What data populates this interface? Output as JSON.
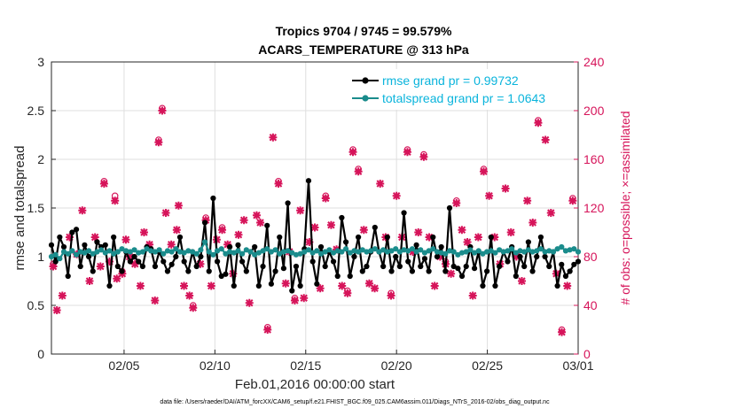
{
  "chart_data": {
    "type": "line",
    "title": "Tropics 9704 / 9745 = 99.579%",
    "subtitle": "ACARS_TEMPERATURE @ 313 hPa",
    "xlabel": "Feb.01,2016 00:00:00 start",
    "ylabel": "rmse and totalspread",
    "ylabel_right": "# of obs: o=possible; ×=assimilated",
    "footer": "data file: /Users/raeder/DAI/ATM_forcXX/CAM6_setup/f.e21.FHIST_BGC.f09_025.CAM6assim.011/Diags_NTrS_2016-02/obs_diag_output.nc",
    "x_range": [
      1,
      30
    ],
    "ylim": [
      0,
      3
    ],
    "ylim_right": [
      0,
      240
    ],
    "x_ticks": [
      5,
      10,
      15,
      20,
      25,
      30
    ],
    "x_tick_labels": [
      "02/05",
      "02/10",
      "02/15",
      "02/20",
      "02/25",
      "03/01"
    ],
    "y_ticks": [
      "0",
      "0.5",
      "1",
      "1.5",
      "2",
      "2.5",
      "3"
    ],
    "y_ticks_right": [
      "0",
      "40",
      "80",
      "120",
      "160",
      "200",
      "240"
    ],
    "legend": [
      {
        "label": "rmse grand pr = 0.99732",
        "color": "#000000"
      },
      {
        "label": "totalspread grand pr = 1.0643",
        "color": "#1a8c8c"
      }
    ],
    "series": [
      {
        "name": "rmse",
        "color": "#000000",
        "values": [
          1.12,
          0.95,
          1.2,
          1.1,
          0.8,
          1.25,
          1.28,
          0.9,
          1.12,
          1.0,
          0.85,
          1.15,
          1.1,
          1.12,
          0.7,
          1.2,
          0.9,
          0.85,
          1.05,
          0.95,
          1.0,
          0.95,
          0.9,
          1.1,
          1.08,
          0.9,
          1.05,
          0.95,
          0.85,
          0.92,
          1.0,
          1.2,
          0.95,
          0.85,
          1.05,
          0.9,
          1.0,
          1.35,
          0.85,
          1.6,
          0.95,
          0.8,
          0.82,
          1.1,
          0.7,
          1.12,
          0.95,
          0.85,
          1.05,
          1.1,
          0.7,
          0.9,
          1.32,
          0.72,
          0.85,
          1.2,
          0.88,
          1.55,
          0.65,
          0.9,
          0.7,
          1.08,
          1.78,
          0.95,
          0.72,
          1.1,
          0.9,
          1.05,
          0.95,
          0.8,
          1.4,
          1.15,
          0.8,
          1.0,
          1.2,
          0.85,
          0.9,
          1.05,
          1.3,
          1.05,
          0.9,
          1.2,
          0.85,
          1.0,
          0.9,
          1.45,
          0.95,
          0.85,
          1.12,
          0.9,
          0.98,
          0.85,
          1.2,
          1.0,
          1.1,
          0.85,
          1.5,
          0.9,
          0.88,
          0.8,
          0.9,
          1.1,
          0.88,
          1.05,
          0.7,
          0.85,
          1.2,
          0.7,
          0.9,
          1.05,
          0.95,
          1.1,
          0.8,
          1.0,
          0.9,
          1.15,
          0.85,
          1.0,
          1.2,
          1.0,
          0.9,
          1.05,
          0.7,
          0.92,
          0.8,
          0.85,
          0.92,
          0.95
        ]
      },
      {
        "name": "totalspread",
        "color": "#1a8c8c",
        "values": [
          1.0,
          1.02,
          0.98,
          1.05,
          1.03,
          1.06,
          1.02,
          1.05,
          1.04,
          1.06,
          1.03,
          1.05,
          1.07,
          1.04,
          1.06,
          1.03,
          1.05,
          1.08,
          1.06,
          1.05,
          1.07,
          1.04,
          1.05,
          1.08,
          1.06,
          1.05,
          1.07,
          1.03,
          1.06,
          1.05,
          1.08,
          1.05,
          1.04,
          1.06,
          1.05,
          1.03,
          1.07,
          1.15,
          1.05,
          1.02,
          1.06,
          1.08,
          1.03,
          1.05,
          1.04,
          1.06,
          1.03,
          1.07,
          1.05,
          1.02,
          1.04,
          1.06,
          1.08,
          1.05,
          1.07,
          1.03,
          1.05,
          1.06,
          1.04,
          1.02,
          1.03,
          1.05,
          1.07,
          1.04,
          1.06,
          1.03,
          1.05,
          1.07,
          1.04,
          1.06,
          1.05,
          1.08,
          1.04,
          1.06,
          1.05,
          1.07,
          1.05,
          1.06,
          1.08,
          1.05,
          1.07,
          1.05,
          1.06,
          1.08,
          1.05,
          1.07,
          1.06,
          1.08,
          1.05,
          1.07,
          1.04,
          1.06,
          1.08,
          1.05,
          1.04,
          1.03,
          1.06,
          1.05,
          1.02,
          1.04,
          1.05,
          1.07,
          1.04,
          1.06,
          1.03,
          1.05,
          1.06,
          1.04,
          1.07,
          1.05,
          1.06,
          1.08,
          1.04,
          1.06,
          1.05,
          1.07,
          1.05,
          1.06,
          1.08,
          1.05,
          1.06,
          1.05,
          1.08,
          1.1,
          1.06,
          1.07,
          1.08,
          1.05
        ]
      }
    ],
    "obs_assimilated": [
      [
        1.1,
        72
      ],
      [
        1.3,
        36
      ],
      [
        1.6,
        48
      ],
      [
        2.0,
        96
      ],
      [
        2.4,
        82
      ],
      [
        2.7,
        118
      ],
      [
        3.1,
        60
      ],
      [
        3.4,
        96
      ],
      [
        3.7,
        72
      ],
      [
        3.9,
        140
      ],
      [
        4.2,
        76
      ],
      [
        4.5,
        126
      ],
      [
        4.6,
        62
      ],
      [
        4.9,
        66
      ],
      [
        5.1,
        94
      ],
      [
        5.3,
        80
      ],
      [
        5.6,
        74
      ],
      [
        5.9,
        56
      ],
      [
        6.1,
        100
      ],
      [
        6.4,
        90
      ],
      [
        6.7,
        44
      ],
      [
        6.9,
        174
      ],
      [
        7.1,
        200
      ],
      [
        7.3,
        116
      ],
      [
        7.6,
        90
      ],
      [
        7.9,
        102
      ],
      [
        8.0,
        122
      ],
      [
        8.3,
        56
      ],
      [
        8.6,
        48
      ],
      [
        8.8,
        38
      ],
      [
        9.2,
        74
      ],
      [
        9.5,
        110
      ],
      [
        9.8,
        56
      ],
      [
        10.1,
        94
      ],
      [
        10.4,
        102
      ],
      [
        10.7,
        90
      ],
      [
        11.0,
        66
      ],
      [
        11.3,
        98
      ],
      [
        11.6,
        110
      ],
      [
        11.9,
        42
      ],
      [
        12.3,
        114
      ],
      [
        12.5,
        108
      ],
      [
        12.9,
        20
      ],
      [
        13.2,
        178
      ],
      [
        13.5,
        140
      ],
      [
        13.9,
        58
      ],
      [
        14.1,
        84
      ],
      [
        14.4,
        44
      ],
      [
        14.7,
        118
      ],
      [
        14.9,
        46
      ],
      [
        15.2,
        92
      ],
      [
        15.5,
        104
      ],
      [
        15.8,
        54
      ],
      [
        16.1,
        128
      ],
      [
        16.4,
        106
      ],
      [
        16.7,
        86
      ],
      [
        17.0,
        56
      ],
      [
        17.3,
        50
      ],
      [
        17.6,
        166
      ],
      [
        17.9,
        150
      ],
      [
        18.2,
        102
      ],
      [
        18.5,
        58
      ],
      [
        18.8,
        54
      ],
      [
        19.1,
        140
      ],
      [
        19.4,
        96
      ],
      [
        19.7,
        48
      ],
      [
        20.0,
        130
      ],
      [
        20.3,
        96
      ],
      [
        20.6,
        166
      ],
      [
        20.9,
        84
      ],
      [
        21.2,
        100
      ],
      [
        21.5,
        162
      ],
      [
        21.8,
        96
      ],
      [
        22.1,
        56
      ],
      [
        22.4,
        80
      ],
      [
        22.7,
        74
      ],
      [
        23.0,
        66
      ],
      [
        23.3,
        124
      ],
      [
        23.6,
        102
      ],
      [
        23.9,
        92
      ],
      [
        24.2,
        48
      ],
      [
        24.5,
        96
      ],
      [
        24.8,
        150
      ],
      [
        25.1,
        130
      ],
      [
        25.4,
        96
      ],
      [
        25.7,
        74
      ],
      [
        26.0,
        136
      ],
      [
        26.3,
        100
      ],
      [
        26.6,
        80
      ],
      [
        26.9,
        60
      ],
      [
        27.2,
        126
      ],
      [
        27.5,
        108
      ],
      [
        27.8,
        190
      ],
      [
        28.2,
        176
      ],
      [
        28.5,
        116
      ],
      [
        28.8,
        66
      ],
      [
        29.1,
        18
      ],
      [
        29.4,
        56
      ],
      [
        29.7,
        126
      ]
    ],
    "obs_possible": [
      [
        1.1,
        74
      ],
      [
        3.9,
        142
      ],
      [
        4.5,
        130
      ],
      [
        7.1,
        202
      ],
      [
        9.5,
        112
      ],
      [
        13.5,
        142
      ],
      [
        17.6,
        168
      ],
      [
        17.9,
        152
      ],
      [
        20.6,
        168
      ],
      [
        21.5,
        164
      ],
      [
        24.8,
        152
      ],
      [
        27.8,
        192
      ],
      [
        29.7,
        128
      ],
      [
        10.4,
        104
      ],
      [
        16.1,
        130
      ],
      [
        23.3,
        126
      ],
      [
        17.3,
        52
      ],
      [
        6.9,
        176
      ],
      [
        12.9,
        22
      ],
      [
        22.7,
        76
      ],
      [
        29.1,
        20
      ],
      [
        14.4,
        46
      ],
      [
        8.8,
        40
      ],
      [
        4.9,
        68
      ],
      [
        19.7,
        50
      ],
      [
        5.6,
        76
      ]
    ]
  }
}
